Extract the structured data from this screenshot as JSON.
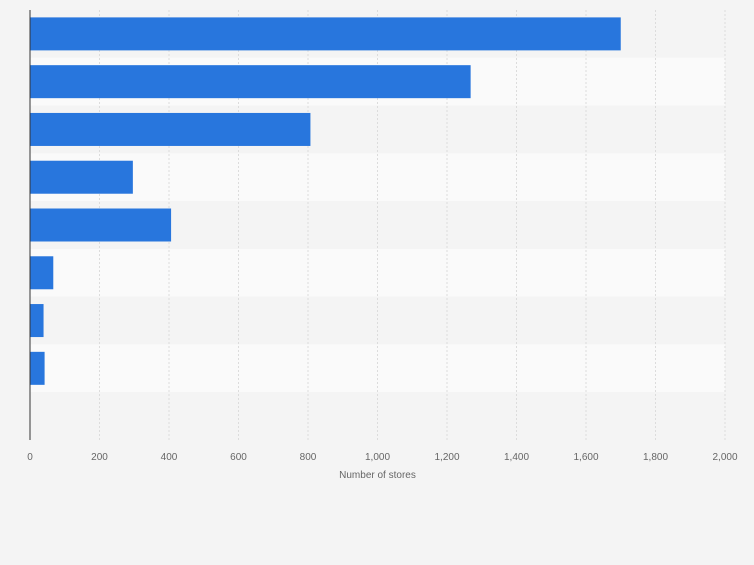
{
  "chart_data": {
    "type": "bar",
    "orientation": "horizontal",
    "categories": [
      "",
      "",
      "",
      "",
      "",
      "",
      "",
      "",
      ""
    ],
    "values": [
      1700,
      1268,
      807,
      296,
      406,
      67,
      39,
      42,
      null
    ],
    "title": "",
    "xlabel": "Number of stores",
    "ylabel": "",
    "xlim": [
      0,
      2000
    ],
    "x_ticks": [
      0,
      200,
      400,
      600,
      800,
      1000,
      1200,
      1400,
      1600,
      1800,
      2000
    ],
    "x_tick_labels": [
      "0",
      "200",
      "400",
      "600",
      "800",
      "1,000",
      "1,200",
      "1,400",
      "1,600",
      "1,800",
      "2,000"
    ],
    "grid": true,
    "legend": "none",
    "colors": {
      "bar": "#2876dd",
      "band_odd": "#f4f4f4",
      "band_even": "#fafafa",
      "grid": "#dcdcdc",
      "axis": "#333333",
      "text": "#666666",
      "background": "#f4f4f4"
    }
  }
}
